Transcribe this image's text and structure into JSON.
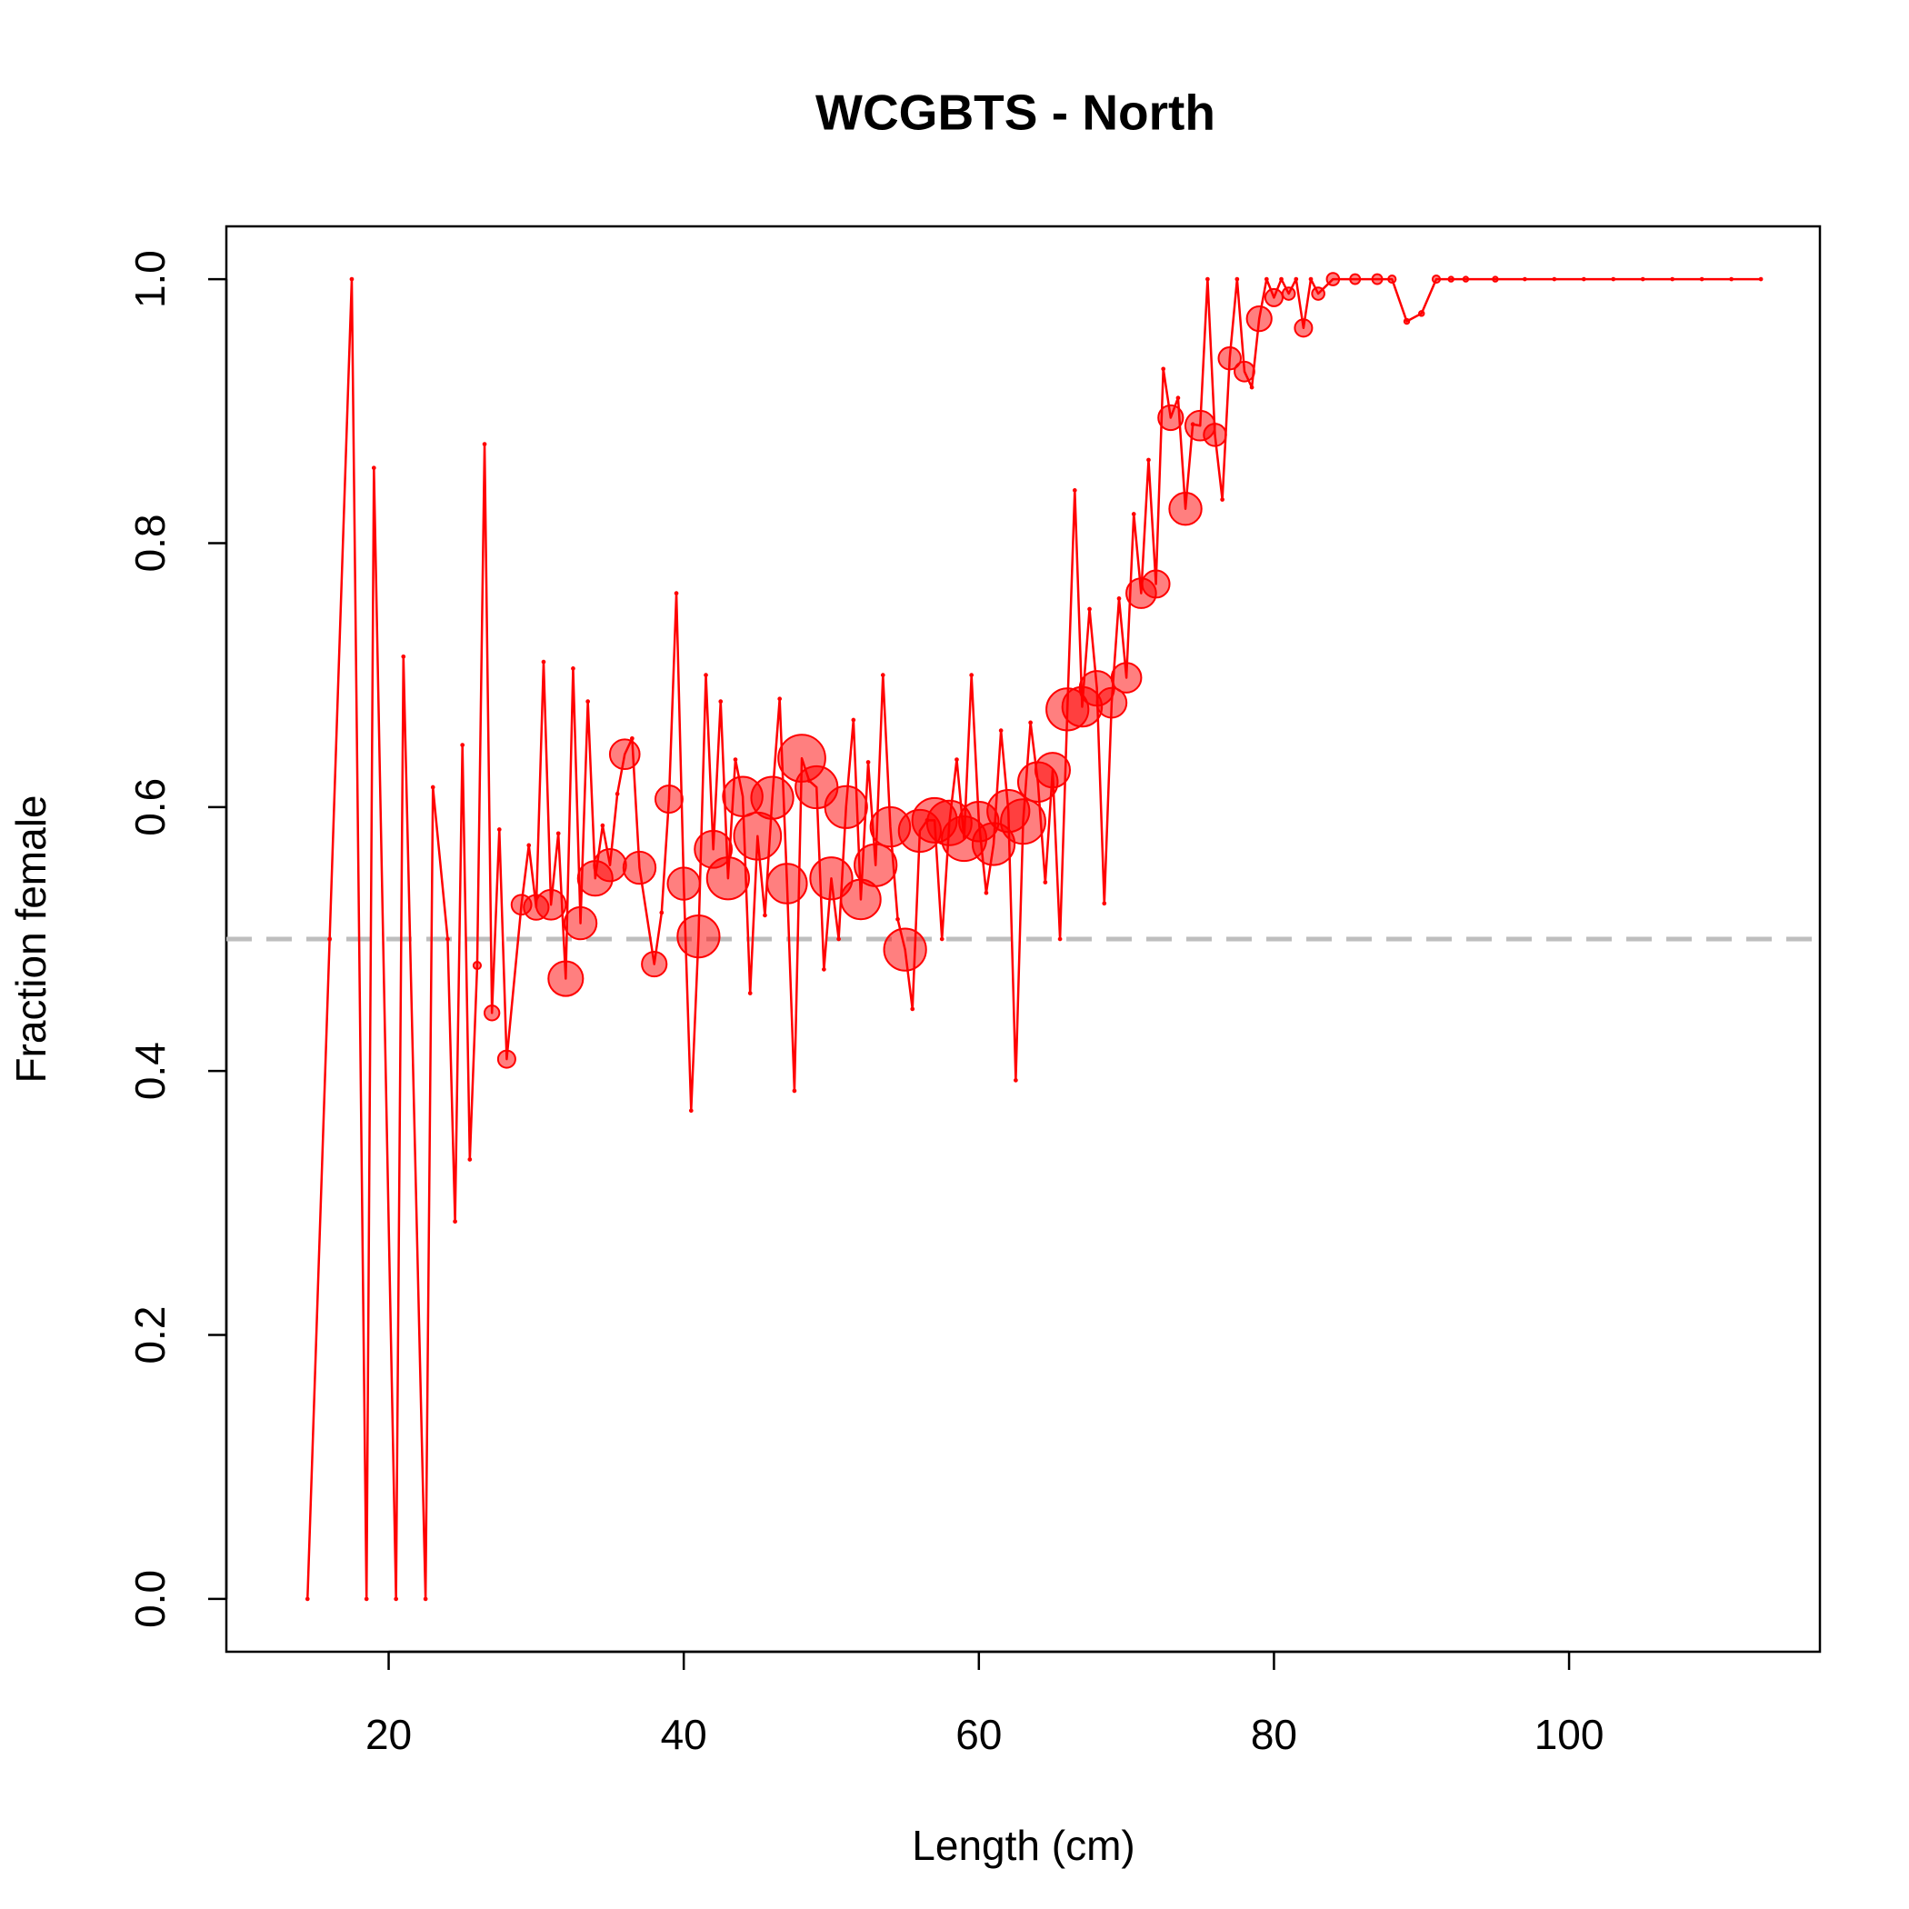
{
  "chart_data": {
    "type": "line",
    "title": "WCGBTS - North",
    "x_label": "Length (cm)",
    "y_label": "Fraction female",
    "x": [
      14.5,
      16,
      17.5,
      18.5,
      19,
      20.5,
      21,
      22.5,
      23,
      24,
      24.5,
      25,
      25.5,
      26,
      26.5,
      27,
      27.5,
      28,
      29,
      29.5,
      30,
      30.5,
      31,
      31.5,
      32,
      32.5,
      33,
      33.5,
      34,
      34.5,
      35,
      35.5,
      36,
      36.5,
      37,
      38,
      38.5,
      39,
      39.5,
      40,
      40.5,
      41,
      41.5,
      42,
      42.5,
      43,
      43.5,
      44,
      44.5,
      45,
      45.5,
      46,
      46.5,
      47,
      47.5,
      48,
      48.5,
      49,
      49.5,
      50,
      50.5,
      51,
      51.5,
      52,
      52.5,
      53,
      53.5,
      54,
      54.5,
      55,
      55.5,
      56,
      56.5,
      57,
      57.5,
      58,
      58.5,
      59,
      59.5,
      60,
      60.5,
      61,
      61.5,
      62,
      62.5,
      63,
      63.5,
      64,
      64.5,
      65,
      65.5,
      66,
      66.5,
      67,
      67.5,
      68,
      68.5,
      69,
      69.5,
      70,
      70.5,
      71,
      71.5,
      72,
      72.5,
      73,
      73.5,
      74,
      74.5,
      75,
      75.5,
      76,
      76.5,
      77,
      77.5,
      78,
      78.5,
      79,
      79.5,
      80,
      80.5,
      81,
      81.5,
      82,
      82.5,
      83,
      84,
      85.5,
      87,
      88,
      89,
      90,
      91,
      92,
      93,
      95,
      97,
      99,
      101,
      103,
      105,
      107,
      109,
      111,
      113
    ],
    "values": [
      0,
      0.5,
      1,
      0,
      0.857,
      0,
      0.714,
      0,
      0.615,
      0.5,
      0.286,
      0.647,
      0.333,
      0.48,
      0.875,
      0.444,
      0.583,
      0.409,
      0.526,
      0.571,
      0.524,
      0.71,
      0.526,
      0.58,
      0.47,
      0.705,
      0.512,
      0.68,
      0.546,
      0.586,
      0.556,
      0.61,
      0.64,
      0.652,
      0.554,
      0.481,
      0.52,
      0.606,
      0.762,
      0.542,
      0.37,
      0.502,
      0.7,
      0.568,
      0.68,
      0.546,
      0.636,
      0.608,
      0.459,
      0.578,
      0.518,
      0.607,
      0.682,
      0.542,
      0.385,
      0.637,
      0.62,
      0.615,
      0.477,
      0.546,
      0.5,
      0.6,
      0.666,
      0.53,
      0.634,
      0.556,
      0.7,
      0.585,
      0.515,
      0.492,
      0.447,
      0.582,
      0.59,
      0.59,
      0.5,
      0.588,
      0.636,
      0.576,
      0.7,
      0.589,
      0.535,
      0.572,
      0.658,
      0.597,
      0.393,
      0.589,
      0.664,
      0.619,
      0.543,
      0.628,
      0.5,
      0.674,
      0.84,
      0.676,
      0.75,
      0.69,
      0.527,
      0.679,
      0.758,
      0.698,
      0.822,
      0.762,
      0.863,
      0.769,
      0.932,
      0.895,
      0.91,
      0.826,
      0.89,
      0.889,
      1,
      0.882,
      0.833,
      0.94,
      1,
      0.93,
      0.918,
      0.97,
      1,
      0.986,
      1,
      0.989,
      1,
      0.963,
      1,
      0.989,
      1,
      1,
      1,
      1,
      0.968,
      0.974,
      1,
      1,
      1,
      1,
      1,
      1,
      1,
      1,
      1,
      1,
      1,
      1,
      1
    ],
    "sizes": [
      1,
      1,
      1,
      1,
      1,
      1,
      1,
      1,
      1,
      1,
      1,
      1,
      1,
      3,
      1,
      6,
      1,
      7,
      8,
      1,
      10,
      1,
      12,
      1,
      14,
      1,
      13,
      1,
      14,
      1,
      13,
      1,
      12,
      1,
      13,
      10,
      1,
      11,
      1,
      13,
      1,
      17,
      1,
      15,
      1,
      17,
      1,
      16,
      1,
      19,
      1,
      17,
      1,
      16,
      1,
      19,
      1,
      17,
      1,
      17,
      1,
      17,
      1,
      16,
      1,
      17,
      1,
      16,
      1,
      17,
      1,
      17,
      1,
      18,
      1,
      18,
      1,
      18,
      1,
      16,
      1,
      17,
      1,
      17,
      1,
      18,
      1,
      16,
      1,
      14,
      1,
      17,
      1,
      16,
      1,
      14,
      1,
      12,
      1,
      12,
      1,
      12,
      1,
      11,
      1,
      10,
      1,
      13,
      1,
      12,
      1,
      9,
      1,
      9,
      1,
      8,
      1,
      10,
      1,
      7,
      1,
      5,
      1,
      7,
      1,
      5,
      5,
      4,
      4,
      3,
      2,
      2,
      3,
      2,
      2,
      2,
      1,
      1,
      1,
      1,
      1,
      1,
      1,
      1,
      1
    ],
    "color": "#ff0000",
    "fill_color": "rgba(255,0,0,0.5)",
    "reference_line": {
      "value": 0.5,
      "color": "#bebebe"
    },
    "xlim": [
      9,
      117
    ],
    "ylim": [
      -0.04,
      1.04
    ],
    "xticks": [
      20,
      40,
      60,
      80,
      100
    ],
    "yticks": [
      {
        "value": 0,
        "label": "0.0"
      },
      0.2,
      0.4,
      0.6,
      0.8,
      {
        "value": 1,
        "label": "1.0"
      }
    ],
    "grid": false
  }
}
